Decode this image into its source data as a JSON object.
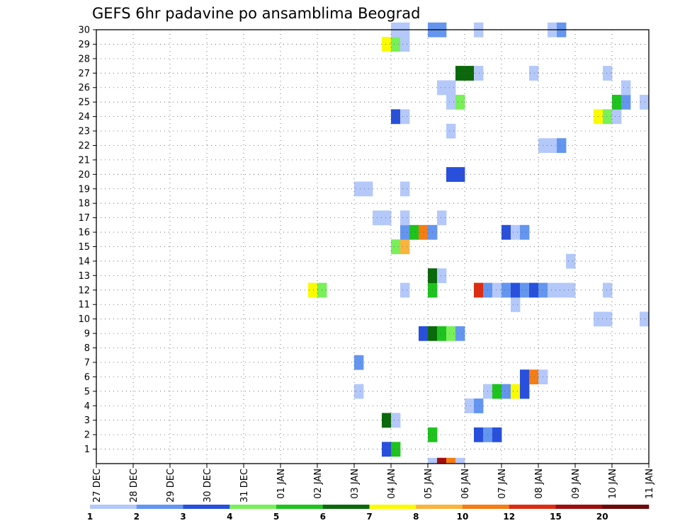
{
  "chart_data": {
    "type": "heatmap",
    "title": "GEFS 6hr padavine po ansamblima Beograd",
    "x_tick_labels": [
      "27 DEC",
      "28 DEC",
      "29 DEC",
      "30 DEC",
      "31 DEC",
      "01 JAN",
      "02 JAN",
      "03 JAN",
      "04 JAN",
      "05 JAN",
      "06 JAN",
      "07 JAN",
      "08 JAN",
      "09 JAN",
      "10 JAN",
      "11 JAN"
    ],
    "y_tick_labels": [
      "1",
      "2",
      "3",
      "4",
      "5",
      "6",
      "7",
      "8",
      "9",
      "10",
      "11",
      "12",
      "13",
      "14",
      "15",
      "16",
      "17",
      "18",
      "19",
      "20",
      "21",
      "22",
      "23",
      "24",
      "25",
      "26",
      "27",
      "28",
      "29",
      "30"
    ],
    "x_range_days": [
      0,
      15
    ],
    "y_range_members": [
      0,
      30
    ],
    "grid": "dotted",
    "colorbar": {
      "position": "bottom",
      "tick_labels": [
        "1",
        "2",
        "3",
        "4",
        "5",
        "6",
        "7",
        "8",
        "10",
        "12",
        "15",
        "20"
      ],
      "colors": [
        "#b4c8fa",
        "#6496f0",
        "#2850dc",
        "#78f05a",
        "#1ec31e",
        "#0a690a",
        "#fafa00",
        "#fab43c",
        "#f57d14",
        "#dc2d14",
        "#a00f0f",
        "#6e0a0a"
      ]
    },
    "cells_note": "each cell: [day start offset from 27 DEC, member 1-30, color class 0-11]; width = one 6h step (0.25 day)",
    "cells": [
      [
        7.75,
        1,
        2
      ],
      [
        8.0,
        1,
        4
      ],
      [
        9.0,
        2,
        4
      ],
      [
        10.25,
        2,
        2
      ],
      [
        10.5,
        2,
        1
      ],
      [
        10.75,
        2,
        2
      ],
      [
        7.75,
        3,
        5
      ],
      [
        8.0,
        3,
        0
      ],
      [
        10.0,
        4,
        0
      ],
      [
        10.25,
        4,
        1
      ],
      [
        7.0,
        5,
        0
      ],
      [
        10.5,
        5,
        0
      ],
      [
        10.75,
        5,
        4
      ],
      [
        11.0,
        5,
        1
      ],
      [
        11.25,
        5,
        6
      ],
      [
        11.5,
        5,
        2
      ],
      [
        11.5,
        6,
        2
      ],
      [
        11.75,
        6,
        8
      ],
      [
        12.0,
        6,
        0
      ],
      [
        7.0,
        7,
        1
      ],
      [
        8.75,
        9,
        2
      ],
      [
        9.0,
        9,
        5
      ],
      [
        9.25,
        9,
        4
      ],
      [
        9.5,
        9,
        3
      ],
      [
        9.75,
        9,
        1
      ],
      [
        13.5,
        10,
        0
      ],
      [
        13.75,
        10,
        0
      ],
      [
        14.75,
        10,
        0
      ],
      [
        11.25,
        11,
        0
      ],
      [
        5.75,
        12,
        6
      ],
      [
        6.0,
        12,
        3
      ],
      [
        8.25,
        12,
        0
      ],
      [
        9.0,
        12,
        4
      ],
      [
        10.25,
        12,
        9
      ],
      [
        10.5,
        12,
        1
      ],
      [
        10.75,
        12,
        0
      ],
      [
        11.0,
        12,
        1
      ],
      [
        11.25,
        12,
        2
      ],
      [
        11.5,
        12,
        1
      ],
      [
        11.75,
        12,
        2
      ],
      [
        12.0,
        12,
        1
      ],
      [
        12.25,
        12,
        0
      ],
      [
        12.5,
        12,
        0
      ],
      [
        12.75,
        12,
        0
      ],
      [
        13.75,
        12,
        0
      ],
      [
        9.0,
        13,
        5
      ],
      [
        9.25,
        13,
        0
      ],
      [
        12.75,
        14,
        0
      ],
      [
        8.0,
        15,
        3
      ],
      [
        8.25,
        15,
        7
      ],
      [
        8.25,
        16,
        1
      ],
      [
        8.5,
        16,
        4
      ],
      [
        8.75,
        16,
        8
      ],
      [
        9.0,
        16,
        1
      ],
      [
        11.0,
        16,
        2
      ],
      [
        11.25,
        16,
        0
      ],
      [
        11.5,
        16,
        1
      ],
      [
        7.5,
        17,
        0
      ],
      [
        7.75,
        17,
        0
      ],
      [
        8.25,
        17,
        0
      ],
      [
        9.25,
        17,
        0
      ],
      [
        7.0,
        19,
        0
      ],
      [
        7.25,
        19,
        0
      ],
      [
        8.25,
        19,
        0
      ],
      [
        9.5,
        20,
        2
      ],
      [
        9.75,
        20,
        2
      ],
      [
        12.0,
        22,
        0
      ],
      [
        12.25,
        22,
        0
      ],
      [
        12.5,
        22,
        1
      ],
      [
        9.5,
        23,
        0
      ],
      [
        8.0,
        24,
        2
      ],
      [
        8.25,
        24,
        0
      ],
      [
        13.5,
        24,
        6
      ],
      [
        13.75,
        24,
        3
      ],
      [
        14.0,
        24,
        0
      ],
      [
        9.5,
        25,
        0
      ],
      [
        9.75,
        25,
        3
      ],
      [
        14.0,
        25,
        4
      ],
      [
        14.25,
        25,
        1
      ],
      [
        14.75,
        25,
        0
      ],
      [
        9.25,
        26,
        0
      ],
      [
        9.5,
        26,
        0
      ],
      [
        14.25,
        26,
        0
      ],
      [
        9.75,
        27,
        5
      ],
      [
        10.0,
        27,
        5
      ],
      [
        10.25,
        27,
        0
      ],
      [
        11.75,
        27,
        0
      ],
      [
        13.75,
        27,
        0
      ],
      [
        7.75,
        29,
        6
      ],
      [
        8.0,
        29,
        3
      ],
      [
        8.25,
        29,
        0
      ],
      [
        8.0,
        30,
        0
      ],
      [
        8.25,
        30,
        0
      ],
      [
        9.0,
        30,
        1
      ],
      [
        9.25,
        30,
        1
      ],
      [
        10.25,
        30,
        0
      ],
      [
        12.25,
        30,
        0
      ],
      [
        12.5,
        30,
        1
      ],
      [
        9.0,
        0,
        0
      ],
      [
        9.25,
        0,
        10
      ],
      [
        9.5,
        0,
        8
      ],
      [
        9.75,
        0,
        0
      ]
    ]
  }
}
